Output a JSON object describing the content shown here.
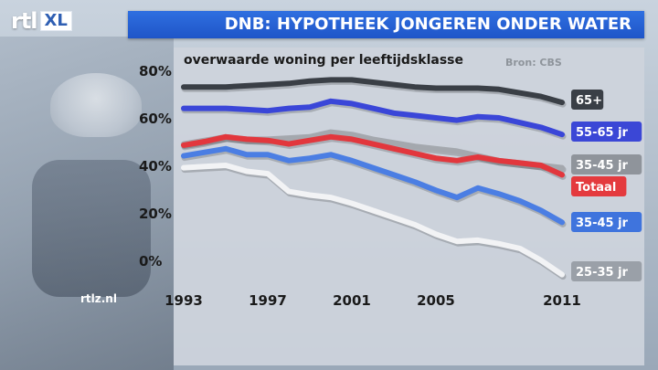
{
  "brand": {
    "logo_text": "rtl",
    "logo_suffix": "XL",
    "website": "rtlz.nl"
  },
  "header": {
    "title": "DNB: HYPOTHEEK JONGEREN ONDER WATER"
  },
  "chart_data": {
    "type": "line",
    "title": "overwaarde woning per leeftijdsklasse",
    "source": "Bron: CBS",
    "xlabel": "",
    "ylabel": "",
    "x": [
      1993,
      1994,
      1995,
      1996,
      1997,
      1998,
      1999,
      2000,
      2001,
      2002,
      2003,
      2004,
      2005,
      2006,
      2007,
      2008,
      2009,
      2010,
      2011
    ],
    "x_ticks": [
      "1993",
      "1997",
      "2001",
      "2005",
      "2011"
    ],
    "x_tick_values": [
      1993,
      1997,
      2001,
      2005,
      2011
    ],
    "y_ticks": [
      "80%",
      "60%",
      "40%",
      "20%",
      "0%"
    ],
    "y_tick_values": [
      80,
      60,
      40,
      20,
      0
    ],
    "ylim": [
      -6,
      84
    ],
    "xlim": [
      1993,
      2011
    ],
    "grid": false,
    "series": [
      {
        "name": "65+",
        "color": "#3a3f46",
        "label_color": "#3a3f46",
        "values": [
          73,
          73,
          73,
          73.5,
          74,
          74.5,
          75.5,
          76,
          76,
          75,
          74,
          73,
          72.5,
          72.5,
          72.5,
          72,
          70.5,
          69,
          66.5
        ]
      },
      {
        "name": "55-65 jr",
        "color": "#3a46d8",
        "label_color": "#3b47d6",
        "values": [
          64,
          64,
          64,
          63.5,
          63,
          64,
          64.5,
          67,
          66,
          64,
          62,
          61,
          60,
          59,
          60.5,
          60,
          58,
          56,
          53
        ]
      },
      {
        "name": "35-45 jr",
        "color": "#a4a8ae",
        "label_color": "#8f949b",
        "values": [
          49,
          50.5,
          52,
          51,
          51,
          51.5,
          52,
          54,
          53,
          51,
          49.5,
          48,
          47,
          46,
          44,
          42,
          41,
          40,
          39
        ]
      },
      {
        "name": "Totaal",
        "color": "#e2373d",
        "label_color": "#e43a3e",
        "values": [
          48.5,
          50,
          52,
          51,
          50.5,
          49,
          50.5,
          52,
          51,
          49,
          47,
          45,
          43,
          42,
          43.5,
          42,
          41,
          40,
          36
        ]
      },
      {
        "name": "35-45 jr",
        "color": "#4b7ee3",
        "label_color": "#3f74dd",
        "values": [
          44,
          45.5,
          47,
          44.5,
          44.5,
          42,
          43,
          44.5,
          42,
          39,
          36,
          33,
          29.5,
          26.5,
          30.5,
          28,
          25,
          21,
          16
        ]
      },
      {
        "name": "25-35 jr",
        "color": "#f2f3f5",
        "label_color": "#9aa0a8",
        "values": [
          39,
          39.5,
          40,
          37.5,
          36.5,
          29,
          27.5,
          26.5,
          24,
          21,
          18,
          15,
          11,
          8,
          8.5,
          7,
          5,
          0,
          -6
        ]
      }
    ]
  }
}
